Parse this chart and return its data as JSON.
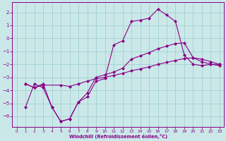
{
  "xlabel": "Windchill (Refroidissement éolien,°C)",
  "bg_color": "#cbe8e8",
  "line_color": "#880088",
  "grid_color": "#99cccc",
  "xlim": [
    -0.5,
    23.5
  ],
  "ylim": [
    -6.8,
    2.8
  ],
  "yticks": [
    2,
    1,
    0,
    -1,
    -2,
    -3,
    -4,
    -5,
    -6
  ],
  "xticks": [
    0,
    1,
    2,
    3,
    4,
    5,
    6,
    7,
    8,
    9,
    10,
    11,
    12,
    13,
    14,
    15,
    16,
    17,
    18,
    19,
    20,
    21,
    22,
    23
  ],
  "line1_x": [
    1,
    2,
    3,
    4,
    5,
    6,
    7,
    8,
    9,
    10,
    11,
    12,
    13,
    14,
    15,
    16,
    17,
    18,
    19,
    20,
    21,
    22,
    23
  ],
  "line1_y": [
    -3.5,
    -3.8,
    -3.5,
    -5.3,
    -6.4,
    -6.2,
    -4.9,
    -4.5,
    -3.3,
    -3.1,
    -0.5,
    -0.2,
    1.3,
    1.4,
    1.55,
    2.25,
    1.8,
    1.3,
    -1.3,
    -2.0,
    -2.1,
    -2.0,
    -2.1
  ],
  "line2_x": [
    1,
    2,
    3,
    5,
    6,
    7,
    8,
    9,
    10,
    11,
    12,
    13,
    14,
    15,
    16,
    17,
    18,
    19,
    20,
    21,
    22,
    23
  ],
  "line2_y": [
    -3.5,
    -3.8,
    -3.6,
    -3.6,
    -3.7,
    -3.5,
    -3.3,
    -3.1,
    -3.0,
    -2.85,
    -2.7,
    -2.5,
    -2.35,
    -2.2,
    -2.0,
    -1.85,
    -1.7,
    -1.55,
    -1.5,
    -1.6,
    -1.8,
    -2.0
  ],
  "line3_x": [
    1,
    2,
    3,
    4,
    5,
    6,
    7,
    8,
    9,
    10,
    11,
    12,
    13,
    14,
    15,
    16,
    17,
    18,
    19,
    20,
    21,
    22,
    23
  ],
  "line3_y": [
    -5.3,
    -3.5,
    -3.8,
    -5.3,
    -6.4,
    -6.2,
    -4.9,
    -4.2,
    -3.0,
    -2.8,
    -2.6,
    -2.3,
    -1.6,
    -1.35,
    -1.1,
    -0.8,
    -0.6,
    -0.4,
    -0.35,
    -1.5,
    -1.8,
    -2.0,
    -2.0
  ]
}
